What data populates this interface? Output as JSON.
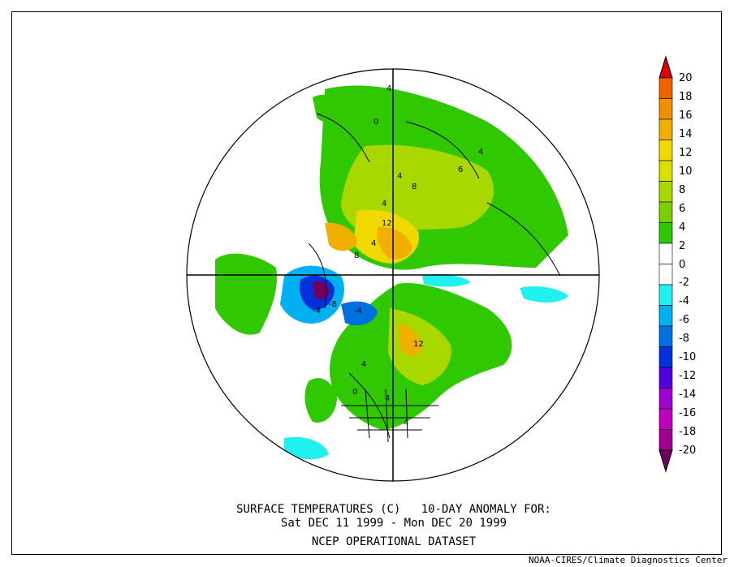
{
  "title": {
    "line1": "SURFACE TEMPERATURES (C)   10-DAY ANOMALY FOR:",
    "line2": "Sat DEC 11 1999 - Mon DEC 20 1999",
    "line3": "NCEP OPERATIONAL DATASET"
  },
  "credit": "NOAA-CIRES/Climate Diagnostics Center",
  "colorbar": {
    "labels": [
      "20",
      "18",
      "16",
      "14",
      "12",
      "10",
      "8",
      "6",
      "4",
      "2",
      "0",
      "-2",
      "-4",
      "-6",
      "-8",
      "-10",
      "-12",
      "-14",
      "-16",
      "-18",
      "-20"
    ],
    "colors": [
      "#e00000",
      "#f06000",
      "#f09000",
      "#f0b000",
      "#f0d800",
      "#d8e000",
      "#a8d800",
      "#78d000",
      "#30c800",
      "#ffffff",
      "#ffffff",
      "#20f0f0",
      "#00b0f0",
      "#0070e0",
      "#0030e0",
      "#5000e0",
      "#a000d0",
      "#c000c0",
      "#a00090",
      "#700060"
    ]
  },
  "map_labels": [
    {
      "id": "l1",
      "text": "4"
    },
    {
      "id": "l2",
      "text": "0"
    },
    {
      "id": "l3",
      "text": "4"
    },
    {
      "id": "l4",
      "text": "8"
    },
    {
      "id": "l5",
      "text": "4"
    },
    {
      "id": "l6",
      "text": "12"
    },
    {
      "id": "l7",
      "text": "8"
    },
    {
      "id": "l8",
      "text": "4"
    },
    {
      "id": "l9",
      "text": "-8"
    },
    {
      "id": "l10",
      "text": "-4"
    },
    {
      "id": "l11",
      "text": "-4"
    },
    {
      "id": "l12",
      "text": "12"
    },
    {
      "id": "l13",
      "text": "4"
    },
    {
      "id": "l14",
      "text": "0"
    },
    {
      "id": "l15",
      "text": "4"
    },
    {
      "id": "l16",
      "text": "4"
    },
    {
      "id": "l17",
      "text": "6"
    },
    {
      "id": "l18",
      "text": "4"
    }
  ]
}
